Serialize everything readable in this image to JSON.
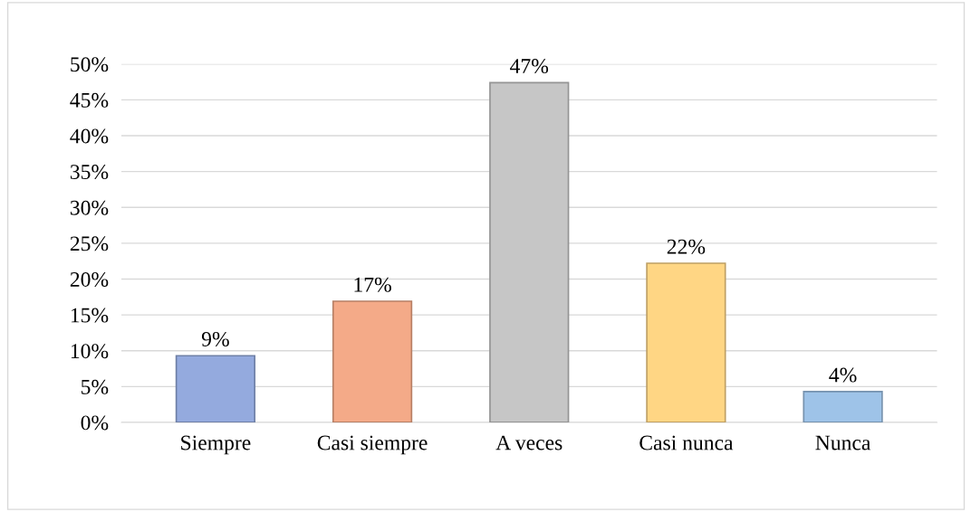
{
  "chart_data": {
    "type": "bar",
    "categories": [
      "Siempre",
      "Casi siempre",
      "A veces",
      "Casi nunca",
      "Nunca"
    ],
    "values": [
      9.3,
      16.9,
      47.4,
      22.2,
      4.3
    ],
    "value_labels": [
      "9%",
      "17%",
      "47%",
      "22%",
      "4%"
    ],
    "colors": [
      "#94aade",
      "#f4aa88",
      "#c6c6c6",
      "#ffd684",
      "#9ec3e8"
    ],
    "ylim": [
      0,
      50
    ],
    "yticks": [
      {
        "value": 0,
        "label": "0%"
      },
      {
        "value": 5,
        "label": "5%"
      },
      {
        "value": 10,
        "label": "10%"
      },
      {
        "value": 15,
        "label": "15%"
      },
      {
        "value": 20,
        "label": "20%"
      },
      {
        "value": 25,
        "label": "25%"
      },
      {
        "value": 30,
        "label": "30%"
      },
      {
        "value": 35,
        "label": "35%"
      },
      {
        "value": 40,
        "label": "40%"
      },
      {
        "value": 45,
        "label": "45%"
      },
      {
        "value": 50,
        "label": "50%"
      }
    ],
    "grid": "y",
    "legend": false
  }
}
